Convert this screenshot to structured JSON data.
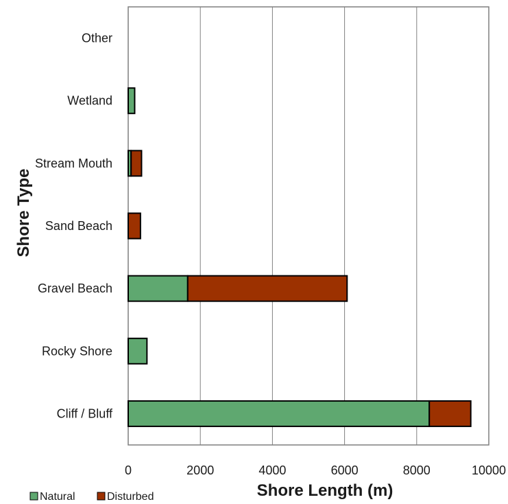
{
  "chart_data": {
    "type": "bar",
    "orientation": "horizontal",
    "stacked": true,
    "categories": [
      "Other",
      "Wetland",
      "Stream Mouth",
      "Sand Beach",
      "Gravel Beach",
      "Rocky Shore",
      "Cliff / Bluff"
    ],
    "series": [
      {
        "name": "Natural",
        "color": "#5fa870",
        "values": [
          0,
          180,
          80,
          0,
          1650,
          520,
          8350
        ]
      },
      {
        "name": "Disturbed",
        "color": "#9c3100",
        "values": [
          0,
          0,
          290,
          340,
          4420,
          0,
          1150
        ]
      }
    ],
    "xlabel": "Shore Length (m)",
    "ylabel": "Shore Type",
    "xlim": [
      0,
      10000
    ],
    "xticks": [
      "0",
      "2000",
      "4000",
      "6000",
      "8000",
      "10000"
    ],
    "grid": "vertical",
    "legend": "bottom-left"
  }
}
